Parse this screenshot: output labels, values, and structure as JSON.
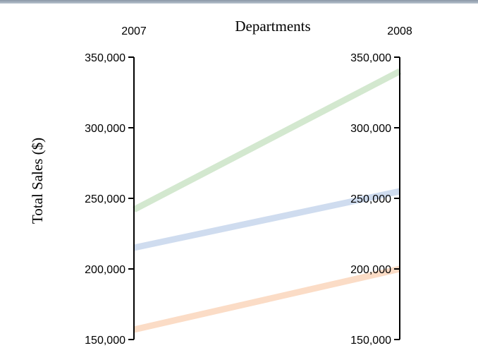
{
  "chart_data": {
    "type": "line",
    "title": "Departments",
    "ylabel": "Total Sales ($)",
    "x": [
      "2007",
      "2008"
    ],
    "ylim": [
      150000,
      350000
    ],
    "yticks": [
      150000,
      200000,
      250000,
      300000,
      350000
    ],
    "ytick_labels": [
      "150,000",
      "200,000",
      "250,000",
      "300,000",
      "350,000"
    ],
    "series": [
      {
        "values": [
          242000,
          340000
        ],
        "color": "#d3e8cf"
      },
      {
        "values": [
          215000,
          255000
        ],
        "color": "#cfdcef"
      },
      {
        "values": [
          157000,
          200000
        ],
        "color": "#fbdcc6"
      }
    ],
    "grid": false,
    "legend": "none"
  }
}
